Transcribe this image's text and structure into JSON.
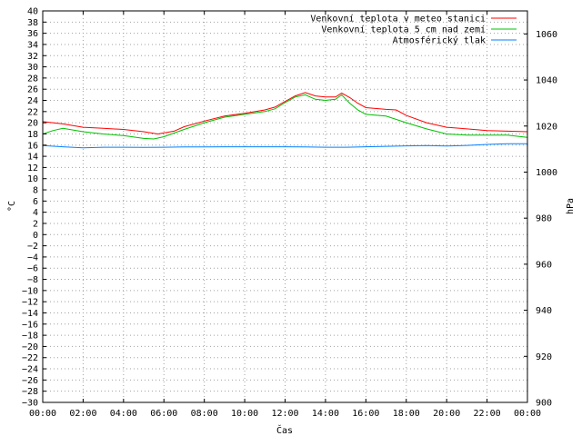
{
  "chart_data": {
    "type": "line",
    "xlabel": "Čas",
    "ylabel": "°C",
    "y2label": "hPa",
    "x_ticks": [
      "00:00",
      "02:00",
      "04:00",
      "06:00",
      "08:00",
      "10:00",
      "12:00",
      "14:00",
      "16:00",
      "18:00",
      "20:00",
      "22:00",
      "00:00"
    ],
    "x_hours": [
      0,
      2,
      4,
      6,
      8,
      10,
      12,
      14,
      16,
      18,
      20,
      22,
      24
    ],
    "xlim": [
      0,
      24
    ],
    "ylim": [
      -30,
      40
    ],
    "y_ticks": [
      -30,
      -28,
      -26,
      -24,
      -22,
      -20,
      -18,
      -16,
      -14,
      -12,
      -10,
      -8,
      -6,
      -4,
      -2,
      0,
      2,
      4,
      6,
      8,
      10,
      12,
      14,
      16,
      18,
      20,
      22,
      24,
      26,
      28,
      30,
      32,
      34,
      36,
      38,
      40
    ],
    "y2lim": [
      900,
      1070
    ],
    "y2_ticks": [
      900,
      920,
      940,
      960,
      980,
      1000,
      1020,
      1040,
      1060
    ],
    "grid": true,
    "legend_position": "top-right",
    "series": [
      {
        "name": "Venkovní teplota v meteo stanici",
        "color": "#ff0000",
        "axis": "left",
        "x": [
          0,
          1,
          2,
          3,
          4,
          5,
          5.7,
          6.5,
          7,
          8,
          9,
          10,
          11,
          11.5,
          12,
          12.5,
          13,
          13.5,
          14,
          14.5,
          14.8,
          15.2,
          15.6,
          16,
          17,
          17.5,
          18,
          19,
          20,
          21,
          22,
          23,
          24
        ],
        "y": [
          20.2,
          19.8,
          19.2,
          19.0,
          18.8,
          18.4,
          18.0,
          18.5,
          19.3,
          20.3,
          21.2,
          21.7,
          22.3,
          22.8,
          23.8,
          24.8,
          25.4,
          24.8,
          24.6,
          24.6,
          25.3,
          24.5,
          23.5,
          22.7,
          22.4,
          22.3,
          21.3,
          20.0,
          19.2,
          18.9,
          18.6,
          18.5,
          18.4
        ]
      },
      {
        "name": "Venkovní teplota 5 cm nad zemí",
        "color": "#00c000",
        "axis": "left",
        "x": [
          0,
          0.5,
          1,
          2,
          3,
          4,
          5,
          5.5,
          6,
          7,
          8,
          9,
          10,
          11,
          11.5,
          12,
          12.5,
          13,
          13.5,
          14,
          14.5,
          14.8,
          15.2,
          15.6,
          16,
          17,
          18,
          19,
          20,
          21,
          22,
          23,
          24
        ],
        "y": [
          18.0,
          18.6,
          19.0,
          18.4,
          18.0,
          17.7,
          17.2,
          17.1,
          17.5,
          18.8,
          20.0,
          21.0,
          21.5,
          22.0,
          22.5,
          23.6,
          24.6,
          25.0,
          24.2,
          24.0,
          24.2,
          25.0,
          23.5,
          22.3,
          21.5,
          21.2,
          20.0,
          18.9,
          18.0,
          17.8,
          17.8,
          17.8,
          17.4
        ]
      },
      {
        "name": "Atmosférický tlak",
        "color": "#0080ff",
        "axis": "right",
        "x": [
          0,
          1,
          2,
          3,
          4,
          5,
          6,
          7,
          8,
          9,
          10,
          11,
          12,
          13,
          14,
          15,
          16,
          17,
          18,
          19,
          20,
          21,
          22,
          23,
          24
        ],
        "y": [
          1011.5,
          1011.0,
          1010.5,
          1010.8,
          1010.8,
          1010.7,
          1010.8,
          1010.9,
          1010.9,
          1011.0,
          1011.0,
          1011.0,
          1011.0,
          1010.9,
          1010.8,
          1010.8,
          1011.0,
          1011.2,
          1011.4,
          1011.5,
          1011.3,
          1011.6,
          1012.0,
          1012.3,
          1012.3
        ]
      }
    ]
  }
}
